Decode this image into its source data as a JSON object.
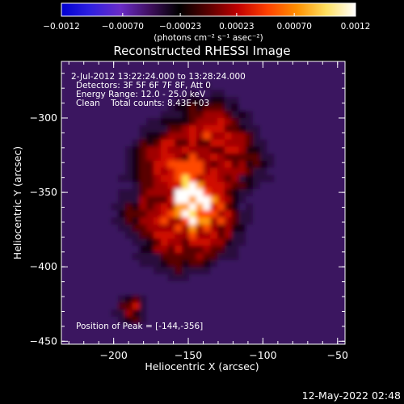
{
  "chart_data": {
    "type": "heatmap",
    "title": "Reconstructed RHESSI Image",
    "xlabel": "Heliocentric X (arcsec)",
    "ylabel": "Heliocentric Y (arcsec)",
    "xlim": [
      -235,
      -45
    ],
    "ylim": [
      -452,
      -262
    ],
    "x_ticks": [
      -200,
      -150,
      -100,
      -50
    ],
    "x_tick_labels": [
      "−200",
      "−150",
      "−100",
      "−50"
    ],
    "y_ticks": [
      -450,
      -400,
      -350,
      -300
    ],
    "y_tick_labels": [
      "−450",
      "−400",
      "−350",
      "−300"
    ],
    "colorbar": {
      "min": -0.0012,
      "max": 0.0012,
      "tick_labels": [
        "−0.0012",
        "−0.00070",
        "−0.00023",
        "0.00023",
        "0.00070",
        "0.0012"
      ],
      "unit_text": "(photons cm⁻² s⁻¹ asec⁻²)",
      "colors": [
        "#0000d0",
        "#3020e0",
        "#6a2cc8",
        "#401060",
        "#000000",
        "#5a0000",
        "#c00000",
        "#ff4000",
        "#ff9000",
        "#ffe060",
        "#ffffff"
      ]
    },
    "peak": {
      "x": -144,
      "y": -356
    },
    "info": {
      "time_range": "2-Jul-2012 13:22:24.000 to 13:28:24.000",
      "detectors": "Detectors: 3F 5F 6F 7F 8F, Att 0",
      "energy": "Energy Range: 12.0 - 25.0 keV",
      "clean": "Clean    Total counts: 8.43E+03",
      "peak_label": "Position of Peak = [-144,-356]"
    },
    "grid": false
  },
  "footer": {
    "timestamp": "12-May-2022 02:48"
  }
}
